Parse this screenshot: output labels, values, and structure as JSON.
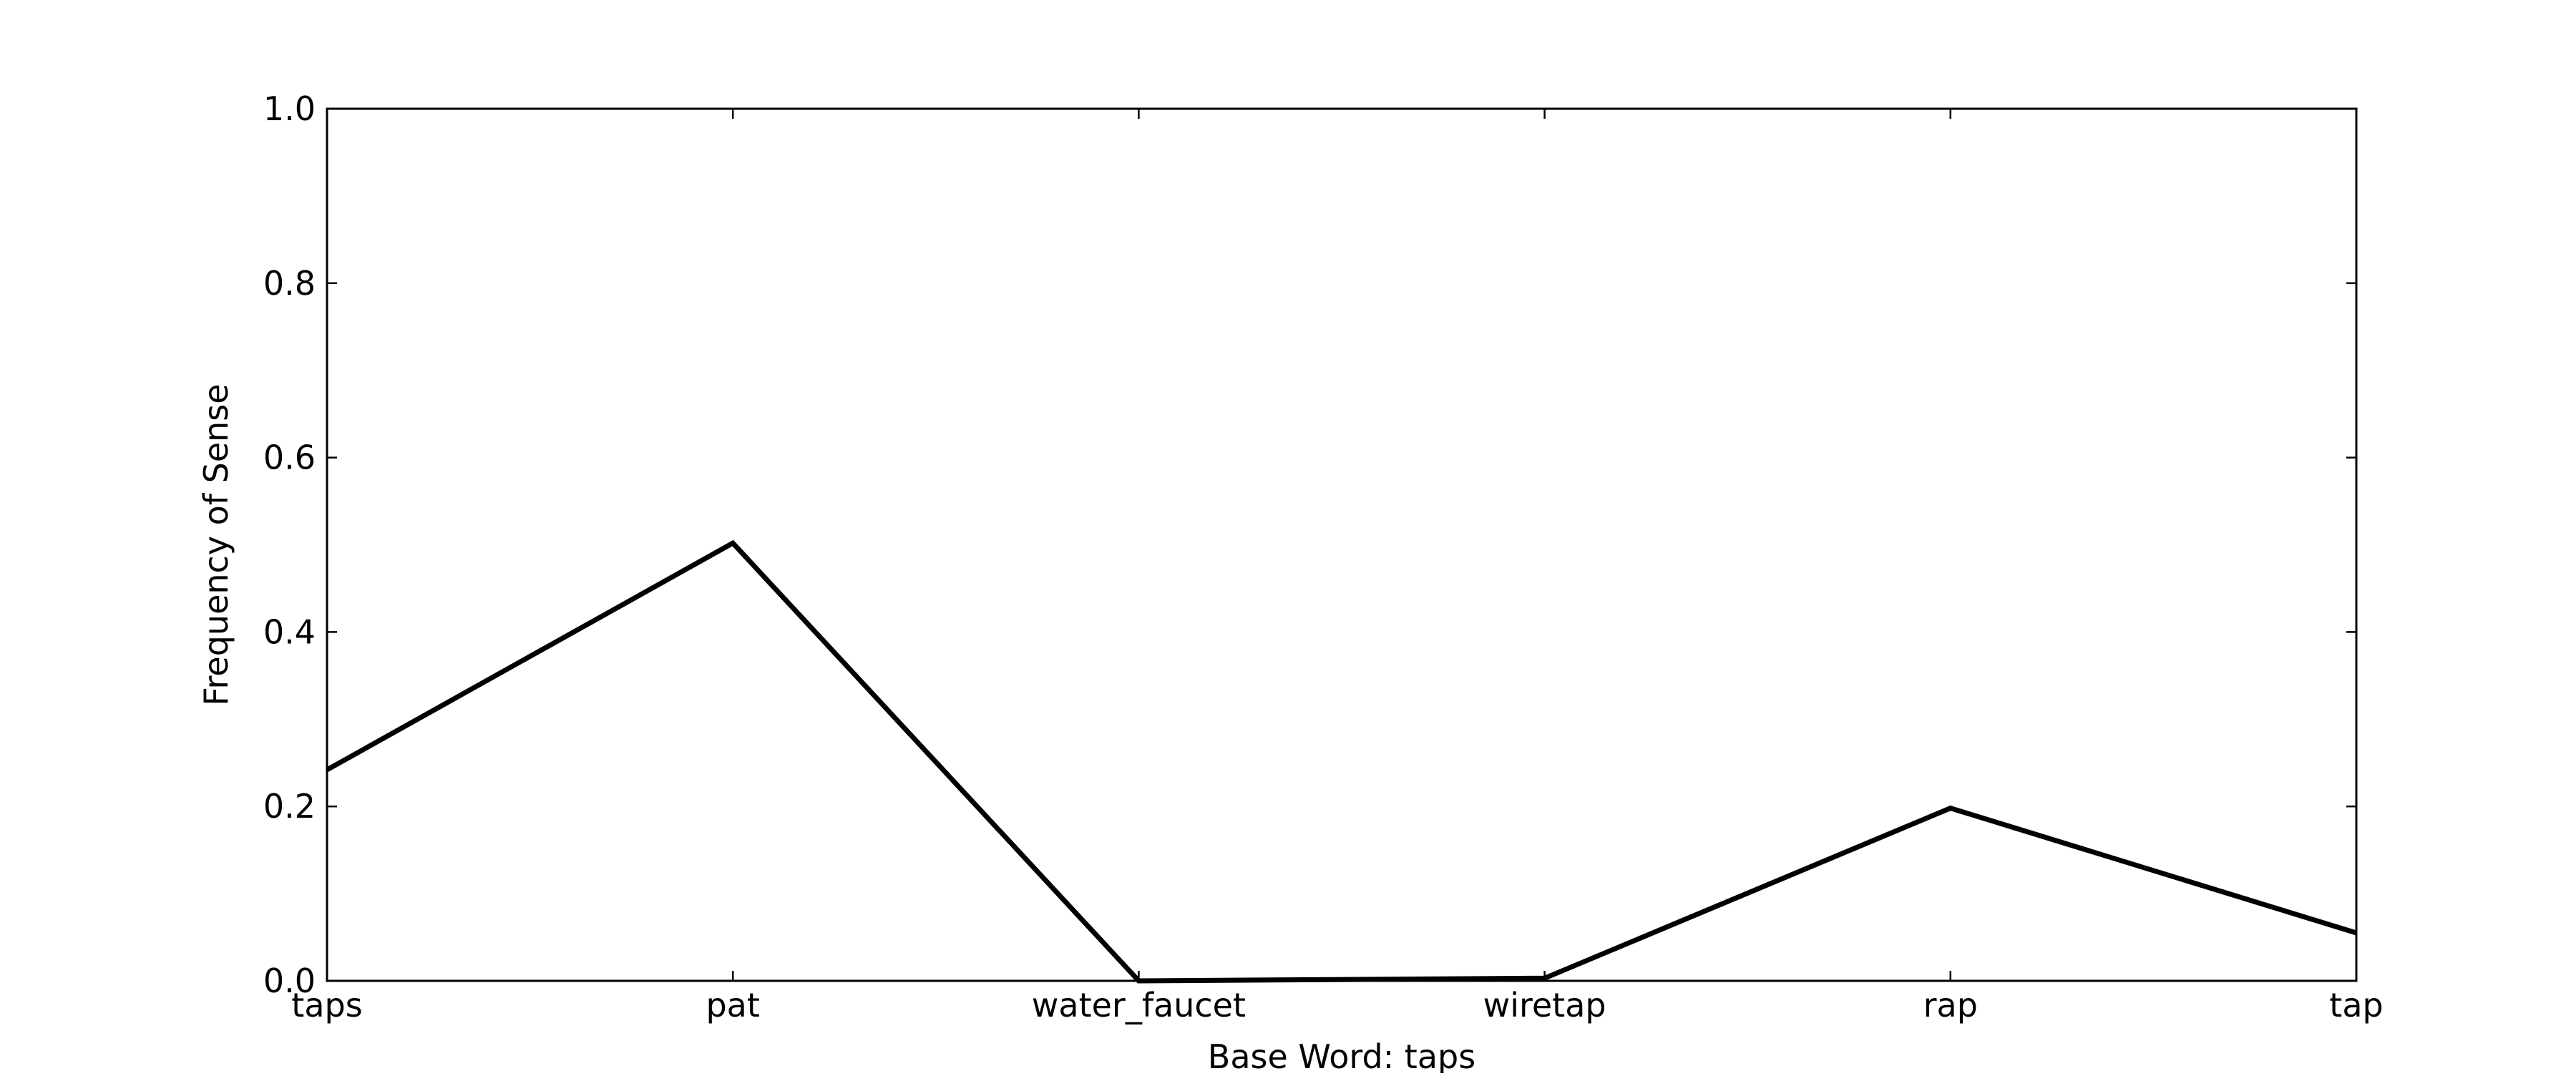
{
  "chart_data": {
    "type": "line",
    "title": "",
    "xlabel": "Base Word: taps",
    "ylabel": "Frequency of Sense",
    "categories": [
      "taps",
      "pat",
      "water_faucet",
      "wiretap",
      "rap",
      "tap"
    ],
    "values": [
      0.242,
      0.502,
      0.0,
      0.003,
      0.198,
      0.055
    ],
    "ylim": [
      0.0,
      1.0
    ],
    "yticks": [
      "0.0",
      "0.2",
      "0.4",
      "0.6",
      "0.8",
      "1.0"
    ],
    "grid": false,
    "line_color": "#000000"
  }
}
